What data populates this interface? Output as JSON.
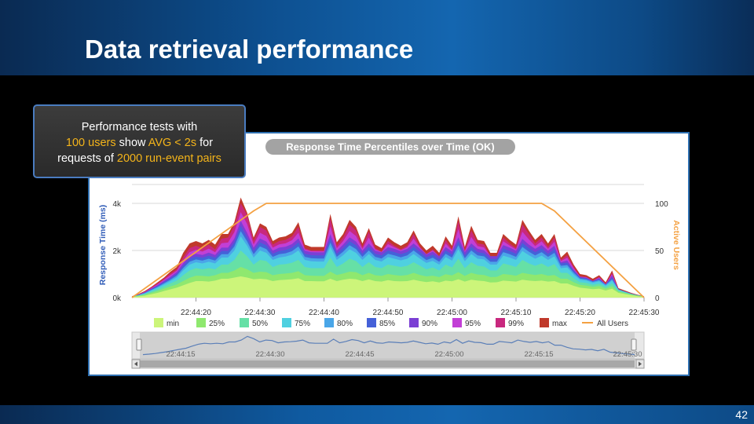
{
  "slide": {
    "title": "Data retrieval performance",
    "number": "42"
  },
  "callout": {
    "t1": "Performance tests with",
    "h1": "100 users",
    "t2": " show ",
    "h2": "AVG < 2s",
    "t3": " for",
    "t4": "requests of ",
    "h3": "2000 run-event pairs"
  },
  "colors": {
    "min": "#ccf57a",
    "p25": "#8fe86f",
    "p50": "#66e0a6",
    "p75": "#4fd0e0",
    "p80": "#4aa6e8",
    "p85": "#4561d8",
    "p90": "#7b3fd4",
    "p95": "#c23fd6",
    "p99": "#c8287e",
    "max": "#c0392b",
    "users": "#f4a142"
  },
  "chart_data": {
    "type": "area",
    "title": "Response Time Percentiles over Time (OK)",
    "ylabel": "Response Time (ms)",
    "y2label": "Active Users",
    "ylim": [
      0,
      4800
    ],
    "y2lim": [
      0,
      120
    ],
    "yticks": [
      "0k",
      "2k",
      "4k"
    ],
    "yticks_values": [
      0,
      2000,
      4000
    ],
    "y2ticks": [
      "0",
      "50",
      "100"
    ],
    "y2ticks_values": [
      0,
      50,
      100
    ],
    "x_start_s": 0,
    "x_end_s": 80,
    "xticks": [
      "22:44:20",
      "22:44:30",
      "22:44:40",
      "22:44:50",
      "22:45:00",
      "22:45:10",
      "22:45:20",
      "22:45:30"
    ],
    "xticks_s": [
      10,
      20,
      30,
      40,
      50,
      60,
      70,
      80
    ],
    "navigator_ticks": [
      "22:44:15",
      "22:44:30",
      "22:44:45",
      "22:45:00",
      "22:45:15",
      "22:45:30"
    ],
    "max_values": [
      60,
      150,
      280,
      450,
      650,
      850,
      1100,
      1300,
      1900,
      2300,
      2400,
      2300,
      2450,
      2250,
      2700,
      2700,
      3200,
      4250,
      3600,
      2550,
      3150,
      3000,
      2400,
      2550,
      2600,
      2750,
      3200,
      2250,
      2150,
      2150,
      2150,
      3550,
      2350,
      2700,
      3300,
      3000,
      2300,
      2950,
      2250,
      2100,
      2550,
      2350,
      2200,
      2350,
      2850,
      2300,
      2000,
      2200,
      1900,
      2600,
      2200,
      3450,
      2150,
      3050,
      2450,
      2400,
      1900,
      1900,
      2700,
      2450,
      2250,
      3300,
      2850,
      2450,
      2700,
      2300,
      2700,
      1700,
      1950,
      1400,
      1000,
      950,
      800,
      950,
      650,
      1150,
      400,
      300,
      200,
      120,
      60
    ],
    "p99_values": [
      50,
      130,
      250,
      420,
      600,
      800,
      1020,
      1200,
      1700,
      2100,
      2200,
      2100,
      2250,
      2050,
      2500,
      2550,
      3050,
      4000,
      3500,
      2400,
      3000,
      2850,
      2250,
      2400,
      2450,
      2600,
      3000,
      2100,
      2000,
      2000,
      2000,
      3350,
      2200,
      2550,
      3100,
      2850,
      2150,
      2800,
      2100,
      1950,
      2400,
      2200,
      2050,
      2200,
      2700,
      2150,
      1850,
      2050,
      1750,
      2450,
      2050,
      3250,
      2000,
      2850,
      2300,
      2250,
      1750,
      1750,
      2550,
      2300,
      2100,
      3100,
      2700,
      2300,
      2550,
      2150,
      2550,
      1600,
      1800,
      1300,
      900,
      880,
      720,
      880,
      580,
      1050,
      340,
      260,
      170,
      100,
      50
    ],
    "series": [
      {
        "name": "min",
        "values": [
          20,
          50,
          80,
          140,
          200,
          280,
          350,
          420,
          520,
          620,
          700,
          700,
          680,
          720,
          800,
          800,
          850,
          900,
          850,
          780,
          800,
          780,
          700,
          740,
          760,
          780,
          820,
          700,
          700,
          690,
          690,
          800,
          700,
          760,
          800,
          780,
          700,
          770,
          700,
          680,
          740,
          700,
          690,
          700,
          760,
          700,
          660,
          690,
          640,
          720,
          690,
          780,
          680,
          760,
          720,
          700,
          640,
          650,
          720,
          700,
          680,
          760,
          720,
          700,
          720,
          680,
          700,
          600,
          600,
          500,
          420,
          390,
          360,
          380,
          300,
          380,
          200,
          150,
          100,
          60,
          30
        ]
      },
      {
        "name": "25%",
        "values": [
          30,
          70,
          120,
          200,
          280,
          380,
          470,
          560,
          700,
          840,
          930,
          920,
          900,
          950,
          1050,
          1050,
          1150,
          1300,
          1200,
          1050,
          1100,
          1080,
          950,
          1000,
          1020,
          1050,
          1120,
          950,
          930,
          920,
          920,
          1100,
          960,
          1020,
          1100,
          1080,
          950,
          1050,
          950,
          920,
          1000,
          960,
          930,
          960,
          1050,
          960,
          900,
          930,
          870,
          990,
          940,
          1080,
          920,
          1050,
          980,
          960,
          870,
          880,
          1000,
          970,
          930,
          1050,
          1000,
          960,
          1000,
          930,
          960,
          800,
          800,
          650,
          540,
          510,
          460,
          490,
          380,
          480,
          250,
          190,
          130,
          80,
          40
        ]
      },
      {
        "name": "50%",
        "values": [
          35,
          85,
          150,
          250,
          350,
          480,
          600,
          720,
          950,
          1150,
          1250,
          1200,
          1250,
          1200,
          1400,
          1400,
          1600,
          2000,
          1750,
          1400,
          1600,
          1550,
          1300,
          1400,
          1420,
          1480,
          1600,
          1300,
          1250,
          1250,
          1250,
          1700,
          1300,
          1450,
          1650,
          1550,
          1300,
          1500,
          1300,
          1250,
          1400,
          1350,
          1300,
          1350,
          1500,
          1350,
          1200,
          1280,
          1150,
          1400,
          1280,
          1650,
          1250,
          1500,
          1350,
          1320,
          1150,
          1150,
          1450,
          1380,
          1300,
          1600,
          1450,
          1350,
          1450,
          1300,
          1420,
          1050,
          1050,
          820,
          650,
          620,
          540,
          590,
          450,
          600,
          300,
          220,
          150,
          90,
          45
        ]
      },
      {
        "name": "75%",
        "values": [
          40,
          100,
          180,
          300,
          420,
          560,
          700,
          860,
          1150,
          1400,
          1500,
          1450,
          1520,
          1450,
          1700,
          1700,
          2000,
          2600,
          2200,
          1700,
          2000,
          1900,
          1600,
          1700,
          1740,
          1820,
          2000,
          1600,
          1540,
          1530,
          1530,
          2150,
          1600,
          1800,
          2050,
          1900,
          1600,
          1850,
          1600,
          1530,
          1720,
          1650,
          1580,
          1650,
          1850,
          1650,
          1470,
          1560,
          1400,
          1720,
          1570,
          2050,
          1540,
          1850,
          1650,
          1620,
          1400,
          1400,
          1780,
          1700,
          1600,
          1980,
          1800,
          1650,
          1780,
          1600,
          1750,
          1250,
          1280,
          980,
          760,
          720,
          630,
          690,
          510,
          720,
          330,
          240,
          160,
          95,
          48
        ]
      },
      {
        "name": "80%",
        "values": [
          42,
          106,
          195,
          325,
          455,
          610,
          760,
          935,
          1250,
          1520,
          1620,
          1570,
          1650,
          1570,
          1840,
          1840,
          2170,
          2820,
          2380,
          1840,
          2170,
          2060,
          1730,
          1840,
          1880,
          1970,
          2170,
          1730,
          1670,
          1660,
          1660,
          2330,
          1730,
          1950,
          2220,
          2060,
          1730,
          2000,
          1730,
          1660,
          1860,
          1790,
          1710,
          1790,
          2000,
          1790,
          1590,
          1690,
          1520,
          1860,
          1700,
          2220,
          1670,
          2000,
          1790,
          1750,
          1520,
          1520,
          1930,
          1840,
          1730,
          2150,
          1950,
          1790,
          1930,
          1730,
          1900,
          1350,
          1380,
          1060,
          810,
          770,
          670,
          740,
          540,
          780,
          345,
          250,
          165,
          97,
          49
        ]
      },
      {
        "name": "85%",
        "values": [
          44,
          112,
          210,
          350,
          490,
          660,
          820,
          1010,
          1350,
          1640,
          1740,
          1690,
          1780,
          1690,
          1980,
          1980,
          2340,
          3040,
          2560,
          1980,
          2340,
          2220,
          1860,
          1980,
          2020,
          2120,
          2340,
          1860,
          1800,
          1790,
          1790,
          2510,
          1860,
          2100,
          2390,
          2220,
          1860,
          2150,
          1860,
          1790,
          2000,
          1930,
          1840,
          1930,
          2150,
          1930,
          1710,
          1820,
          1640,
          2000,
          1830,
          2390,
          1800,
          2150,
          1930,
          1880,
          1640,
          1640,
          2080,
          1980,
          1860,
          2320,
          2100,
          1930,
          2080,
          1860,
          2050,
          1450,
          1480,
          1140,
          860,
          810,
          700,
          780,
          560,
          840,
          360,
          255,
          168,
          98,
          49
        ]
      },
      {
        "name": "90%",
        "values": [
          46,
          118,
          225,
          375,
          525,
          710,
          880,
          1085,
          1450,
          1760,
          1860,
          1810,
          1910,
          1810,
          2120,
          2120,
          2510,
          3260,
          2740,
          2120,
          2510,
          2380,
          1990,
          2120,
          2160,
          2270,
          2510,
          1990,
          1930,
          1920,
          1920,
          2690,
          1990,
          2250,
          2560,
          2380,
          1990,
          2300,
          1990,
          1920,
          2140,
          2070,
          1970,
          2070,
          2300,
          2070,
          1830,
          1950,
          1760,
          2140,
          1960,
          2560,
          1930,
          2300,
          2070,
          2010,
          1760,
          1760,
          2230,
          2120,
          1990,
          2490,
          2250,
          2070,
          2230,
          1990,
          2200,
          1500,
          1580,
          1180,
          870,
          840,
          700,
          820,
          560,
          940,
          330,
          260,
          170,
          100,
          50
        ]
      },
      {
        "name": "95%",
        "values": [
          48,
          124,
          238,
          398,
          562,
          755,
          950,
          1142,
          1575,
          1930,
          2030,
          1955,
          2080,
          1930,
          2310,
          2335,
          2780,
          3630,
          3120,
          2260,
          2755,
          2615,
          2120,
          2260,
          2305,
          2435,
          2755,
          2045,
          1965,
          1960,
          1960,
          3020,
          2095,
          2400,
          2830,
          2615,
          2070,
          2550,
          2045,
          1935,
          2270,
          2135,
          2010,
          2135,
          2500,
          2110,
          1840,
          2000,
          1755,
          2295,
          2005,
          2905,
          1965,
          2575,
          2185,
          2130,
          1755,
          1755,
          2390,
          2210,
          2045,
          2795,
          2475,
          2185,
          2390,
          2070,
          2375,
          1550,
          1690,
          1240,
          885,
          860,
          710,
          850,
          570,
          995,
          335,
          260,
          170,
          100,
          50
        ]
      },
      {
        "name": "99%",
        "values": [
          50,
          130,
          250,
          420,
          600,
          800,
          1020,
          1200,
          1700,
          2100,
          2200,
          2100,
          2250,
          2050,
          2500,
          2550,
          3050,
          4000,
          3500,
          2400,
          3000,
          2850,
          2250,
          2400,
          2450,
          2600,
          3000,
          2100,
          2000,
          2000,
          2000,
          3350,
          2200,
          2550,
          3100,
          2850,
          2150,
          2800,
          2100,
          1950,
          2400,
          2200,
          2050,
          2200,
          2700,
          2150,
          1850,
          2050,
          1750,
          2450,
          2050,
          3250,
          2000,
          2850,
          2300,
          2250,
          1750,
          1750,
          2550,
          2300,
          2100,
          3100,
          2700,
          2300,
          2550,
          2150,
          2550,
          1600,
          1800,
          1300,
          900,
          880,
          720,
          880,
          580,
          1050,
          340,
          260,
          170,
          100,
          50
        ]
      },
      {
        "name": "max",
        "values": [
          60,
          150,
          280,
          450,
          650,
          850,
          1100,
          1300,
          1900,
          2300,
          2400,
          2300,
          2450,
          2250,
          2700,
          2700,
          3200,
          4250,
          3600,
          2550,
          3150,
          3000,
          2400,
          2550,
          2600,
          2750,
          3200,
          2250,
          2150,
          2150,
          2150,
          3550,
          2350,
          2700,
          3300,
          3000,
          2300,
          2950,
          2250,
          2100,
          2550,
          2350,
          2200,
          2350,
          2850,
          2300,
          2000,
          2200,
          1900,
          2600,
          2200,
          3450,
          2150,
          3050,
          2450,
          2400,
          1900,
          1900,
          2700,
          2450,
          2250,
          3300,
          2850,
          2450,
          2700,
          2300,
          2700,
          1700,
          1950,
          1400,
          1000,
          950,
          800,
          950,
          650,
          1150,
          400,
          300,
          200,
          120,
          60
        ]
      },
      {
        "name": "All Users",
        "axis": "right",
        "x_s": [
          0,
          19,
          21,
          64,
          66,
          80
        ],
        "values": [
          0,
          92,
          100,
          100,
          92,
          0
        ]
      }
    ],
    "legend": [
      "min",
      "25%",
      "50%",
      "75%",
      "80%",
      "85%",
      "90%",
      "95%",
      "99%",
      "max",
      "All Users"
    ],
    "legend_position": "bottom"
  }
}
